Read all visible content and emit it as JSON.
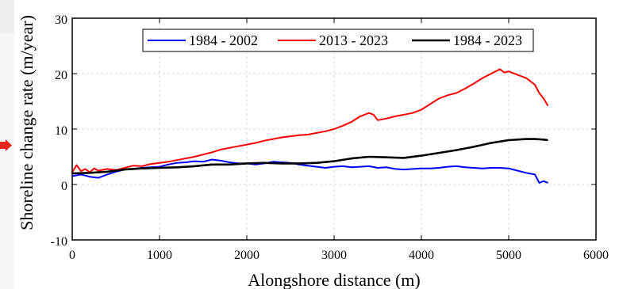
{
  "chart_data": {
    "type": "line",
    "xlabel": "Alongshore distance (m)",
    "ylabel": "Shoreline change rate (m/year)",
    "xlim": [
      0,
      6000
    ],
    "ylim": [
      -10,
      30
    ],
    "xticks": [
      0,
      1000,
      2000,
      3000,
      4000,
      5000,
      6000
    ],
    "yticks": [
      -10,
      0,
      10,
      20,
      30
    ],
    "xtick_labels": [
      "0",
      "1000",
      "2000",
      "3000",
      "4000",
      "5000",
      "6000"
    ],
    "ytick_labels": [
      "-10",
      "0",
      "10",
      "20",
      "30"
    ],
    "grid": true,
    "legend_position": "top",
    "series": [
      {
        "name": "1984 - 2002",
        "color": "#0000ff",
        "x": [
          0,
          100,
          200,
          300,
          400,
          500,
          600,
          700,
          800,
          900,
          1000,
          1100,
          1200,
          1300,
          1400,
          1500,
          1600,
          1700,
          1800,
          1900,
          2000,
          2100,
          2200,
          2300,
          2400,
          2500,
          2600,
          2700,
          2800,
          2900,
          3000,
          3100,
          3200,
          3300,
          3400,
          3500,
          3600,
          3700,
          3800,
          3900,
          4000,
          4100,
          4200,
          4300,
          4400,
          4500,
          4600,
          4700,
          4800,
          4900,
          5000,
          5100,
          5200,
          5300,
          5350,
          5400,
          5450
        ],
        "y": [
          1.5,
          1.8,
          1.4,
          1.2,
          1.8,
          2.3,
          2.7,
          2.8,
          3.0,
          3.1,
          3.2,
          3.6,
          3.9,
          4.0,
          4.2,
          4.1,
          4.5,
          4.3,
          4.0,
          3.8,
          3.8,
          3.6,
          3.8,
          4.1,
          4.0,
          3.9,
          3.6,
          3.4,
          3.2,
          3.0,
          3.2,
          3.3,
          3.1,
          3.2,
          3.3,
          3.0,
          3.1,
          2.8,
          2.7,
          2.8,
          2.9,
          2.9,
          3.0,
          3.2,
          3.3,
          3.1,
          3.0,
          2.9,
          3.0,
          3.0,
          2.9,
          2.5,
          2.1,
          1.8,
          0.3,
          0.6,
          0.3
        ]
      },
      {
        "name": "2013 - 2023",
        "color": "#ff0000",
        "x": [
          0,
          50,
          100,
          150,
          200,
          250,
          300,
          400,
          500,
          600,
          700,
          800,
          900,
          1000,
          1100,
          1200,
          1300,
          1400,
          1500,
          1600,
          1700,
          1800,
          1900,
          2000,
          2100,
          2200,
          2300,
          2400,
          2500,
          2600,
          2700,
          2800,
          2900,
          3000,
          3100,
          3200,
          3300,
          3400,
          3450,
          3500,
          3600,
          3700,
          3800,
          3900,
          4000,
          4100,
          4200,
          4300,
          4400,
          4500,
          4600,
          4700,
          4800,
          4850,
          4900,
          4950,
          5000,
          5100,
          5200,
          5300,
          5350,
          5400,
          5450
        ],
        "y": [
          2.2,
          3.5,
          2.4,
          2.8,
          2.2,
          2.9,
          2.5,
          2.8,
          2.6,
          3.0,
          3.4,
          3.3,
          3.7,
          3.9,
          4.1,
          4.4,
          4.7,
          5.0,
          5.4,
          5.8,
          6.3,
          6.6,
          6.9,
          7.2,
          7.5,
          7.9,
          8.2,
          8.5,
          8.7,
          8.9,
          9.0,
          9.3,
          9.6,
          10.0,
          10.6,
          11.3,
          12.3,
          12.9,
          12.6,
          11.6,
          11.9,
          12.3,
          12.6,
          12.9,
          13.5,
          14.5,
          15.5,
          16.1,
          16.5,
          17.3,
          18.2,
          19.2,
          20.0,
          20.4,
          20.8,
          20.2,
          20.4,
          19.8,
          19.2,
          18.0,
          16.5,
          15.5,
          14.2
        ]
      },
      {
        "name": "1984 - 2023",
        "color": "#000000",
        "x": [
          0,
          200,
          400,
          600,
          800,
          1000,
          1200,
          1400,
          1600,
          1800,
          2000,
          2200,
          2400,
          2600,
          2800,
          3000,
          3200,
          3400,
          3600,
          3800,
          4000,
          4200,
          4400,
          4600,
          4800,
          5000,
          5200,
          5300,
          5400,
          5450
        ],
        "y": [
          2.0,
          2.1,
          2.3,
          2.7,
          2.9,
          3.0,
          3.1,
          3.3,
          3.6,
          3.6,
          3.8,
          3.9,
          3.8,
          3.8,
          3.9,
          4.2,
          4.7,
          5.0,
          4.9,
          4.8,
          5.2,
          5.7,
          6.2,
          6.8,
          7.5,
          8.0,
          8.2,
          8.2,
          8.1,
          8.0
        ]
      }
    ]
  }
}
